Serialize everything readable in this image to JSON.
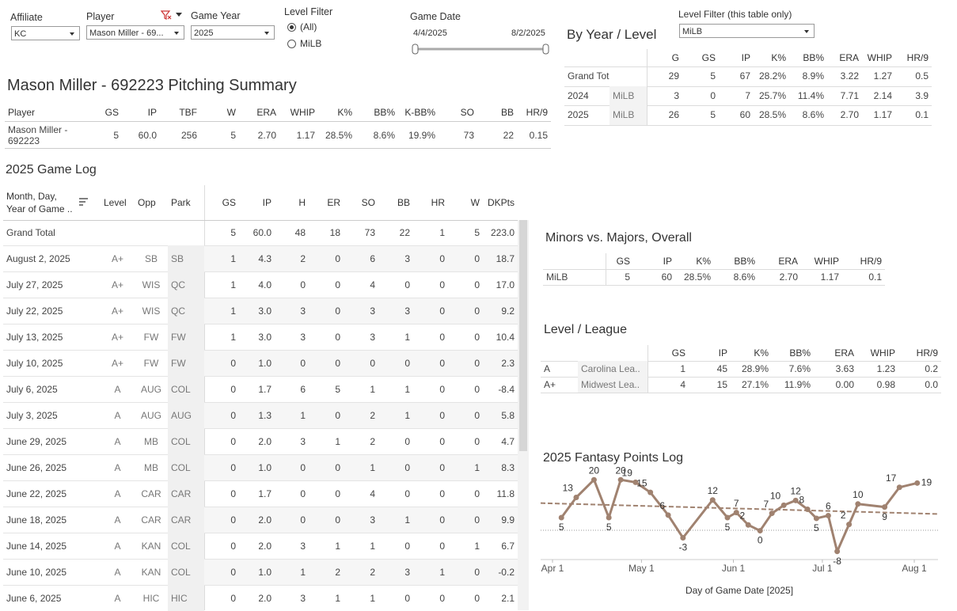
{
  "filters": {
    "affiliate": {
      "label": "Affiliate",
      "value": "KC"
    },
    "player": {
      "label": "Player",
      "value": "Mason Miller - 69..."
    },
    "game_year": {
      "label": "Game Year",
      "value": "2025"
    },
    "level_filter": {
      "label": "Level Filter",
      "options": [
        "(All)",
        "MiLB"
      ],
      "selected": 0
    },
    "game_date": {
      "label": "Game Date",
      "start": "4/4/2025",
      "end": "8/2/2025"
    },
    "table_level_filter": {
      "label": "Level Filter (this table only)",
      "value": "MiLB"
    }
  },
  "by_year_level": {
    "title": "By Year / Level",
    "headers": [
      "G",
      "GS",
      "IP",
      "K%",
      "BB%",
      "ERA",
      "WHIP",
      "HR/9"
    ],
    "rows": [
      {
        "labels": [
          "Grand Total"
        ],
        "cells": [
          "29",
          "5",
          "67",
          "28.2%",
          "8.9%",
          "3.22",
          "1.27",
          "0.5"
        ]
      },
      {
        "labels": [
          "2024",
          "MiLB"
        ],
        "cells": [
          "3",
          "0",
          "7",
          "25.7%",
          "11.4%",
          "7.71",
          "2.14",
          "3.9"
        ]
      },
      {
        "labels": [
          "2025",
          "MiLB"
        ],
        "cells": [
          "26",
          "5",
          "60",
          "28.5%",
          "8.6%",
          "2.70",
          "1.17",
          "0.1"
        ]
      }
    ]
  },
  "summary": {
    "title": "Mason Miller - 692223 Pitching Summary",
    "headers": [
      "Player",
      "GS",
      "IP",
      "TBF",
      "W",
      "ERA",
      "WHIP",
      "K%",
      "BB%",
      "K-BB%",
      "SO",
      "BB",
      "HR/9"
    ],
    "rows": [
      [
        "Mason Miller - 692223",
        "5",
        "60.0",
        "256",
        "5",
        "2.70",
        "1.17",
        "28.5%",
        "8.6%",
        "19.9%",
        "73",
        "22",
        "0.15"
      ]
    ]
  },
  "game_log": {
    "title": "2025 Game Log",
    "headers": [
      "Month, Day, Year of Game ..",
      "Level",
      "Opp",
      "Park",
      "GS",
      "IP",
      "H",
      "ER",
      "SO",
      "BB",
      "HR",
      "W",
      "DKPts"
    ],
    "total": {
      "label": "Grand Total",
      "cells": [
        "5",
        "60.0",
        "48",
        "18",
        "73",
        "22",
        "1",
        "5",
        "223.0"
      ]
    },
    "rows": [
      [
        "August 2, 2025",
        "A+",
        "SB",
        "SB",
        "1",
        "4.3",
        "2",
        "0",
        "6",
        "3",
        "0",
        "0",
        "18.7"
      ],
      [
        "July 27, 2025",
        "A+",
        "WIS",
        "QC",
        "1",
        "4.0",
        "0",
        "0",
        "4",
        "0",
        "0",
        "0",
        "17.0"
      ],
      [
        "July 22, 2025",
        "A+",
        "WIS",
        "QC",
        "1",
        "3.0",
        "3",
        "0",
        "3",
        "3",
        "0",
        "0",
        "9.2"
      ],
      [
        "July 13, 2025",
        "A+",
        "FW",
        "FW",
        "1",
        "3.0",
        "3",
        "0",
        "3",
        "1",
        "0",
        "0",
        "10.4"
      ],
      [
        "July 10, 2025",
        "A+",
        "FW",
        "FW",
        "0",
        "1.0",
        "0",
        "0",
        "0",
        "0",
        "0",
        "0",
        "2.3"
      ],
      [
        "July 6, 2025",
        "A",
        "AUG",
        "COL",
        "0",
        "1.7",
        "6",
        "5",
        "1",
        "1",
        "0",
        "0",
        "-8.4"
      ],
      [
        "July 3, 2025",
        "A",
        "AUG",
        "AUG",
        "0",
        "1.3",
        "1",
        "0",
        "2",
        "1",
        "0",
        "0",
        "5.8"
      ],
      [
        "June 29, 2025",
        "A",
        "MB",
        "COL",
        "0",
        "2.0",
        "3",
        "1",
        "2",
        "0",
        "0",
        "0",
        "4.7"
      ],
      [
        "June 26, 2025",
        "A",
        "MB",
        "COL",
        "0",
        "1.0",
        "0",
        "0",
        "1",
        "0",
        "0",
        "1",
        "8.3"
      ],
      [
        "June 22, 2025",
        "A",
        "CAR",
        "CAR",
        "0",
        "1.7",
        "0",
        "0",
        "4",
        "0",
        "0",
        "0",
        "11.8"
      ],
      [
        "June 18, 2025",
        "A",
        "CAR",
        "CAR",
        "0",
        "2.0",
        "0",
        "0",
        "3",
        "1",
        "0",
        "0",
        "9.9"
      ],
      [
        "June 14, 2025",
        "A",
        "KAN",
        "COL",
        "0",
        "2.0",
        "3",
        "1",
        "1",
        "0",
        "0",
        "1",
        "6.7"
      ],
      [
        "June 10, 2025",
        "A",
        "KAN",
        "COL",
        "0",
        "1.0",
        "1",
        "2",
        "2",
        "3",
        "1",
        "0",
        "-0.2"
      ],
      [
        "June 6, 2025",
        "A",
        "HIC",
        "HIC",
        "0",
        "2.0",
        "3",
        "1",
        "1",
        "0",
        "0",
        "0",
        "2.1"
      ]
    ]
  },
  "minors_majors": {
    "title": "Minors vs. Majors, Overall",
    "headers": [
      "GS",
      "IP",
      "K%",
      "BB%",
      "ERA",
      "WHIP",
      "HR/9"
    ],
    "rows": [
      {
        "labels": [
          "MiLB"
        ],
        "cells": [
          "5",
          "60",
          "28.5%",
          "8.6%",
          "2.70",
          "1.17",
          "0.1"
        ]
      }
    ]
  },
  "level_league": {
    "title": "Level / League",
    "headers": [
      "GS",
      "IP",
      "K%",
      "BB%",
      "ERA",
      "WHIP",
      "HR/9"
    ],
    "rows": [
      {
        "labels": [
          "A",
          "Carolina Lea.."
        ],
        "cells": [
          "1",
          "45",
          "28.9%",
          "7.6%",
          "3.63",
          "1.23",
          "0.2"
        ]
      },
      {
        "labels": [
          "A+",
          "Midwest Lea.."
        ],
        "cells": [
          "4",
          "15",
          "27.1%",
          "11.9%",
          "0.00",
          "0.98",
          "0.0"
        ]
      }
    ]
  },
  "chart_data": {
    "type": "line",
    "title": "2025 Fantasy Points Log",
    "x_label": "Day of Game Date [2025]",
    "x": [
      "2025-04-04",
      "2025-04-09",
      "2025-04-15",
      "2025-04-20",
      "2025-04-24",
      "2025-04-29",
      "2025-05-04",
      "2025-05-10",
      "2025-05-15",
      "2025-05-25",
      "2025-05-30",
      "2025-06-02",
      "2025-06-06",
      "2025-06-10",
      "2025-06-14",
      "2025-06-18",
      "2025-06-22",
      "2025-06-26",
      "2025-06-29",
      "2025-07-03",
      "2025-07-06",
      "2025-07-10",
      "2025-07-13",
      "2025-07-22",
      "2025-07-27",
      "2025-08-02"
    ],
    "values": [
      5,
      13,
      20,
      5,
      20,
      19,
      15,
      6,
      -3,
      12,
      5,
      7,
      2.1,
      -0.2,
      6.7,
      9.9,
      11.8,
      8.3,
      4.7,
      5.8,
      -8.4,
      2.3,
      10.4,
      9.2,
      17.0,
      18.7
    ],
    "value_labels": [
      "5",
      "13",
      "20",
      "5",
      "20",
      "19",
      "15",
      "6",
      "-3",
      "12",
      "5",
      "7",
      "2",
      "0",
      "7",
      "10",
      "12",
      "8",
      "5",
      "6",
      "-8",
      "2",
      "10",
      "9",
      "17",
      "19"
    ],
    "color": "#a08270",
    "xlim": [
      "2025-03-28",
      "2025-08-09"
    ],
    "xticks": [
      {
        "value": "2025-04-01",
        "label": "Apr 1"
      },
      {
        "value": "2025-05-01",
        "label": "May 1"
      },
      {
        "value": "2025-06-01",
        "label": "Jun 1"
      },
      {
        "value": "2025-07-01",
        "label": "Jul 1"
      },
      {
        "value": "2025-08-01",
        "label": "Aug 1"
      }
    ],
    "ylim": [
      -11,
      21
    ],
    "trend_line": true,
    "reference_line": 0
  }
}
